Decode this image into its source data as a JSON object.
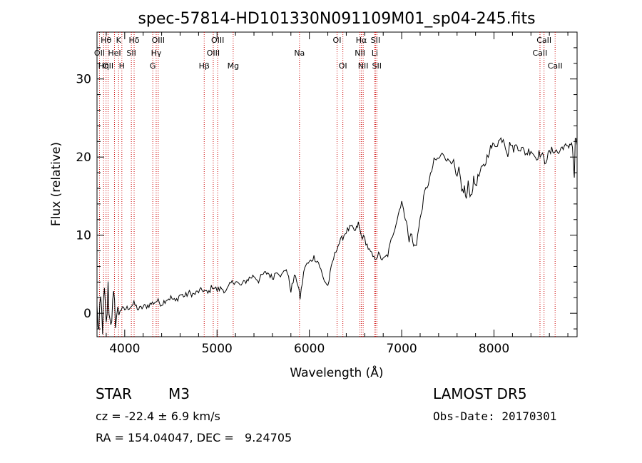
{
  "chart_data": {
    "type": "line",
    "title": "spec-57814-HD101330N091109M01_sp04-245.fits",
    "xlabel": "Wavelength (Å)",
    "ylabel": "Flux (relative)",
    "xlim": [
      3700,
      8900
    ],
    "ylim": [
      -3,
      36
    ],
    "xticks": [
      4000,
      5000,
      6000,
      7000,
      8000
    ],
    "yticks": [
      0,
      10,
      20,
      30
    ],
    "grid": false,
    "series": [
      {
        "x": [
          3700,
          3720,
          3740,
          3760,
          3780,
          3800,
          3820,
          3840,
          3860,
          3880,
          3900,
          3950,
          4000,
          4050,
          4100,
          4150,
          4200,
          4250,
          4300,
          4350,
          4400,
          4450,
          4500,
          4550,
          4600,
          4650,
          4700,
          4750,
          4800,
          4850,
          4900,
          4950,
          5000,
          5050,
          5100,
          5150,
          5200,
          5250,
          5300,
          5350,
          5400,
          5450,
          5500,
          5550,
          5600,
          5650,
          5700,
          5750,
          5800,
          5850,
          5900,
          5950,
          6000,
          6050,
          6100,
          6150,
          6200,
          6250,
          6300,
          6350,
          6400,
          6450,
          6500,
          6530,
          6560,
          6600,
          6650,
          6700,
          6750,
          6800,
          6850,
          6900,
          6950,
          7000,
          7020,
          7050,
          7080,
          7100,
          7130,
          7160,
          7200,
          7250,
          7300,
          7350,
          7400,
          7450,
          7500,
          7550,
          7600,
          7620,
          7650,
          7680,
          7700,
          7720,
          7750,
          7780,
          7800,
          7850,
          7900,
          7950,
          8000,
          8050,
          8100,
          8150,
          8180,
          8200,
          8250,
          8300,
          8350,
          8400,
          8450,
          8500,
          8550,
          8600,
          8650,
          8700,
          8750,
          8800,
          8830,
          8850,
          8870,
          8880,
          8900
        ],
        "y": [
          0.5,
          -2.5,
          1.5,
          -1.5,
          2.5,
          -2.0,
          3.0,
          -1.0,
          0.0,
          1.5,
          -0.5,
          0.5,
          0.5,
          0.8,
          1.2,
          0.5,
          0.8,
          1.0,
          1.3,
          1.6,
          1.2,
          1.8,
          2.0,
          1.5,
          2.4,
          2.2,
          2.6,
          2.4,
          2.8,
          3.0,
          2.5,
          3.5,
          3.0,
          3.2,
          2.8,
          3.8,
          4.2,
          3.5,
          4.0,
          4.5,
          4.8,
          4.2,
          5.0,
          5.2,
          4.5,
          5.5,
          4.8,
          5.8,
          3.0,
          5.0,
          2.0,
          6.0,
          6.5,
          7.2,
          6.5,
          4.5,
          3.5,
          6.5,
          8.5,
          9.5,
          10.5,
          11.0,
          10.5,
          11.5,
          10.0,
          9.5,
          8.0,
          7.0,
          7.5,
          6.8,
          7.5,
          10.0,
          12.0,
          14.5,
          13.0,
          12.0,
          9.0,
          10.5,
          8.5,
          9.0,
          12.0,
          15.5,
          17.0,
          19.5,
          19.8,
          20.5,
          19.5,
          19.8,
          17.0,
          18.5,
          15.5,
          16.0,
          14.5,
          16.5,
          15.0,
          17.0,
          16.5,
          18.0,
          19.0,
          21.0,
          21.5,
          22.0,
          22.5,
          20.5,
          22.0,
          21.0,
          21.5,
          21.0,
          20.5,
          21.0,
          20.0,
          20.5,
          19.5,
          20.5,
          21.0,
          20.5,
          21.5,
          21.0,
          22.0,
          21.5,
          17.0,
          22.5,
          21.5
        ]
      }
    ],
    "line_markers": [
      {
        "x": 3727,
        "label": "OII",
        "row": 1
      },
      {
        "x": 3771,
        "label": "Hη",
        "row": 2
      },
      {
        "x": 3798,
        "label": "Hθ",
        "row": 0
      },
      {
        "x": 3820,
        "label": "OII",
        "row": 2
      },
      {
        "x": 3889,
        "label": "HeI",
        "row": 1
      },
      {
        "x": 3934,
        "label": "K",
        "row": 0
      },
      {
        "x": 3969,
        "label": "H",
        "row": 2
      },
      {
        "x": 4072,
        "label": "SII",
        "row": 1
      },
      {
        "x": 4102,
        "label": "Hδ",
        "row": 0
      },
      {
        "x": 4304,
        "label": "G",
        "row": 2
      },
      {
        "x": 4341,
        "label": "Hγ",
        "row": 1
      },
      {
        "x": 4363,
        "label": "OIII",
        "row": 0
      },
      {
        "x": 4861,
        "label": "Hβ",
        "row": 2
      },
      {
        "x": 4959,
        "label": "OIII",
        "row": 1
      },
      {
        "x": 5007,
        "label": "OIII",
        "row": 0
      },
      {
        "x": 5175,
        "label": "Mg",
        "row": 2
      },
      {
        "x": 5893,
        "label": "Na",
        "row": 1
      },
      {
        "x": 6300,
        "label": "OI",
        "row": 0
      },
      {
        "x": 6363,
        "label": "OI",
        "row": 2
      },
      {
        "x": 6548,
        "label": "NII",
        "row": 1
      },
      {
        "x": 6563,
        "label": "Hα",
        "row": 0
      },
      {
        "x": 6583,
        "label": "NII",
        "row": 2
      },
      {
        "x": 6708,
        "label": "Li",
        "row": 1
      },
      {
        "x": 6716,
        "label": "SII",
        "row": 0
      },
      {
        "x": 6731,
        "label": "SII",
        "row": 2
      },
      {
        "x": 8498,
        "label": "CaII",
        "row": 1
      },
      {
        "x": 8542,
        "label": "CaII",
        "row": 0
      },
      {
        "x": 8662,
        "label": "CaII",
        "row": 2
      }
    ],
    "marker_color": "#cc0000"
  },
  "info": {
    "object_type": "STAR",
    "subclass": "M3",
    "survey": "LAMOST DR5",
    "cz_text": "cz = -22.4 ± 6.9 km/s",
    "obs_date": "Obs-Date: 20170301",
    "radec": "RA = 154.04047, DEC =   9.24705"
  }
}
